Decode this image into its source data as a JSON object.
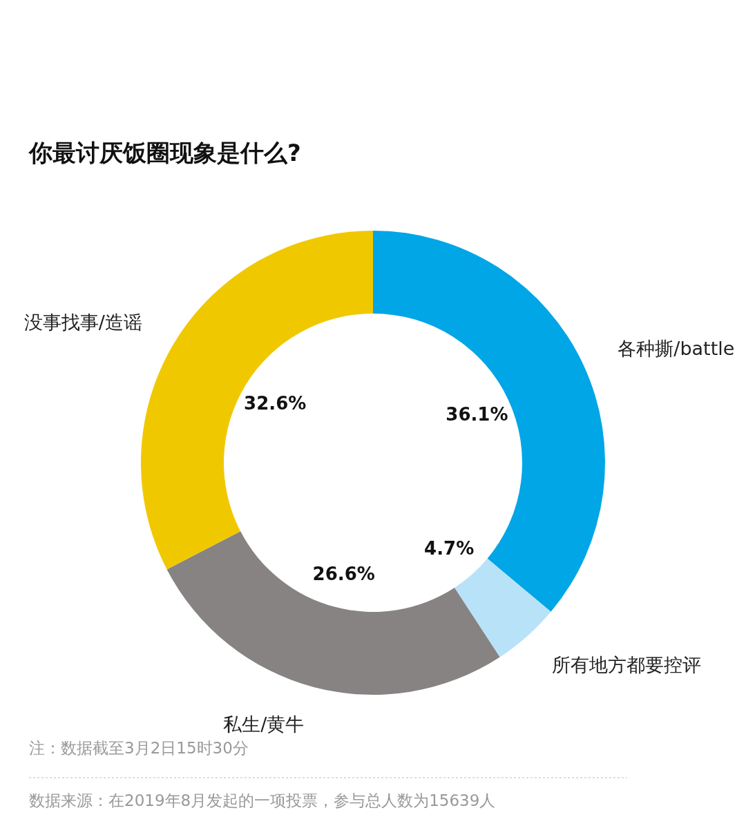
{
  "chart_data": {
    "type": "donut",
    "title": "你最讨厌饭圈现象是什么?",
    "categories": [
      "各种撕/battle",
      "所有地方都要控评",
      "私生/黄牛",
      "没事找事/造谣"
    ],
    "values": [
      36.1,
      4.7,
      26.6,
      32.6
    ],
    "colors": [
      "#00a6e6",
      "#b8e2f8",
      "#868382",
      "#f0c800"
    ],
    "value_labels": [
      "36.1%",
      "4.7%",
      "26.6%",
      "32.6%"
    ],
    "legend": false,
    "annotations": [
      "注：数据截至3月2日15时30分",
      "数据来源：在2019年8月发起的一项投票，参与总人数为15639人"
    ]
  }
}
